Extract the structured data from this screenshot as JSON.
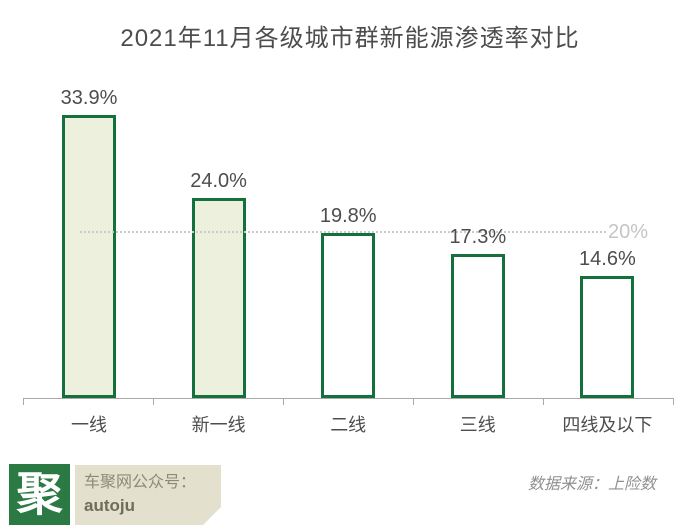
{
  "title": "2021年11月各级城市群新能源渗透率对比",
  "chart_data": {
    "type": "bar",
    "title": "2021年11月各级城市群新能源渗透率对比",
    "categories": [
      "一线",
      "新一线",
      "二线",
      "三线",
      "四线及以下"
    ],
    "values": [
      33.9,
      24.0,
      19.8,
      17.3,
      14.6
    ],
    "value_labels": [
      "33.9%",
      "24.0%",
      "19.8%",
      "17.3%",
      "14.6%"
    ],
    "xlabel": "",
    "ylabel": "",
    "ylim": [
      0,
      34
    ],
    "grid": "single dotted reference line",
    "gridline": {
      "value": 20,
      "label": "20%",
      "style": "dotted"
    },
    "legend": "none",
    "bar_fills": [
      "#eef0de",
      "#eef0de",
      "#ffffff",
      "#ffffff",
      "#ffffff"
    ]
  },
  "colors": {
    "bar_border": "#14713d",
    "bar_fill_highlight": "#eef0de",
    "bar_fill_plain": "#ffffff",
    "gridline": "#cccccc",
    "gridline_label": "#c5c5c5",
    "axis": "#a9a9a9",
    "label_text": "#4d4d4d",
    "logo_green": "#2b7a44",
    "badge_beige": "#e3e0ce"
  },
  "footer": {
    "logo_glyph": "聚",
    "wechat_label": "车聚网公众号：",
    "wechat_handle": "autoju",
    "source": "数据来源：上险数"
  }
}
